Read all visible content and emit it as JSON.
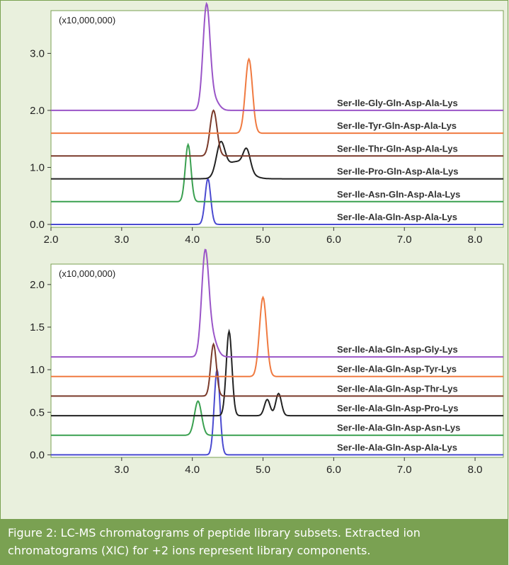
{
  "chart_data": [
    {
      "type": "line",
      "multiplier_label": "(x10,000,000)",
      "xlim": [
        2.0,
        8.4
      ],
      "ylim": [
        -0.05,
        3.75
      ],
      "x_ticks": [
        "2.0",
        "3.0",
        "4.0",
        "5.0",
        "6.0",
        "7.0",
        "8.0"
      ],
      "y_ticks": [
        "0.0",
        "1.0",
        "2.0",
        "3.0"
      ],
      "series": [
        {
          "name": "Ser-Ile-Gly-Gln-Asp-Ala-Lys",
          "color": "#9a55c8",
          "baseline": 2.0,
          "peaks": [
            {
              "x": 4.2,
              "y": 3.8,
              "w": 0.05
            },
            {
              "x": 4.3,
              "y": 2.2,
              "w": 0.07
            }
          ]
        },
        {
          "name": "Ser-Ile-Tyr-Gln-Asp-Ala-Lys",
          "color": "#f07a40",
          "baseline": 1.6,
          "peaks": [
            {
              "x": 4.8,
              "y": 2.9,
              "w": 0.05
            }
          ]
        },
        {
          "name": "Ser-Ile-Thr-Gln-Asp-Ala-Lys",
          "color": "#7a3a2a",
          "baseline": 1.2,
          "peaks": [
            {
              "x": 4.3,
              "y": 2.0,
              "w": 0.05
            }
          ]
        },
        {
          "name": "Ser-Ile-Pro-Gln-Asp-Ala-Lys",
          "color": "#222222",
          "baseline": 0.8,
          "peaks": [
            {
              "x": 4.4,
              "y": 1.35,
              "w": 0.06
            },
            {
              "x": 4.62,
              "y": 1.1,
              "w": 0.15
            },
            {
              "x": 4.77,
              "y": 1.15,
              "w": 0.05
            }
          ]
        },
        {
          "name": "Ser-Ile-Asn-Gln-Asp-Ala-Lys",
          "color": "#3aa050",
          "baseline": 0.4,
          "peaks": [
            {
              "x": 3.94,
              "y": 1.4,
              "w": 0.04
            }
          ]
        },
        {
          "name": "Ser-Ile-Ala-Gln-Asp-Ala-Lys",
          "color": "#4a4ad0",
          "baseline": 0.0,
          "peaks": [
            {
              "x": 4.22,
              "y": 0.8,
              "w": 0.04
            }
          ]
        }
      ]
    },
    {
      "type": "line",
      "multiplier_label": "(x10,000,000)",
      "xlim": [
        2.0,
        8.4
      ],
      "ylim": [
        -0.03,
        2.24
      ],
      "x_ticks": [
        "3.0",
        "4.0",
        "5.0",
        "6.0",
        "7.0",
        "8.0"
      ],
      "y_ticks": [
        "0.0",
        "0.5",
        "1.0",
        "1.5",
        "2.0"
      ],
      "series": [
        {
          "name": "Ser-Ile-Ala-Gln-Asp-Gly-Lys",
          "color": "#9a55c8",
          "baseline": 1.15,
          "peaks": [
            {
              "x": 4.18,
              "y": 2.3,
              "w": 0.05
            },
            {
              "x": 4.27,
              "y": 1.4,
              "w": 0.07
            }
          ]
        },
        {
          "name": "Ser-Ile-Ala-Gln-Asp-Tyr-Lys",
          "color": "#f07a40",
          "baseline": 0.92,
          "peaks": [
            {
              "x": 5.0,
              "y": 1.85,
              "w": 0.05
            }
          ]
        },
        {
          "name": "Ser-Ile-Ala-Gln-Asp-Thr-Lys",
          "color": "#7a3a2a",
          "baseline": 0.69,
          "peaks": [
            {
              "x": 4.3,
              "y": 1.3,
              "w": 0.04
            }
          ]
        },
        {
          "name": "Ser-Ile-Ala-Gln-Asp-Pro-Lys",
          "color": "#222222",
          "baseline": 0.46,
          "peaks": [
            {
              "x": 4.52,
              "y": 1.45,
              "w": 0.04
            },
            {
              "x": 5.06,
              "y": 0.65,
              "w": 0.04
            },
            {
              "x": 5.22,
              "y": 0.72,
              "w": 0.04
            }
          ]
        },
        {
          "name": "Ser-Ile-Ala-Gln-Asp-Asn-Lys",
          "color": "#3aa050",
          "baseline": 0.23,
          "peaks": [
            {
              "x": 4.08,
              "y": 0.63,
              "w": 0.05
            }
          ]
        },
        {
          "name": "Ser-Ile-Ala-Gln-Asp-Ala-Lys",
          "color": "#4a4ad0",
          "baseline": 0.0,
          "peaks": [
            {
              "x": 4.35,
              "y": 1.0,
              "w": 0.04
            }
          ]
        }
      ]
    }
  ],
  "caption": {
    "line1": "Figure 2: LC-MS chromatograms of peptide library subsets. Extracted ion",
    "line2": "chromatograms (XIC) for +2 ions represent library components."
  }
}
